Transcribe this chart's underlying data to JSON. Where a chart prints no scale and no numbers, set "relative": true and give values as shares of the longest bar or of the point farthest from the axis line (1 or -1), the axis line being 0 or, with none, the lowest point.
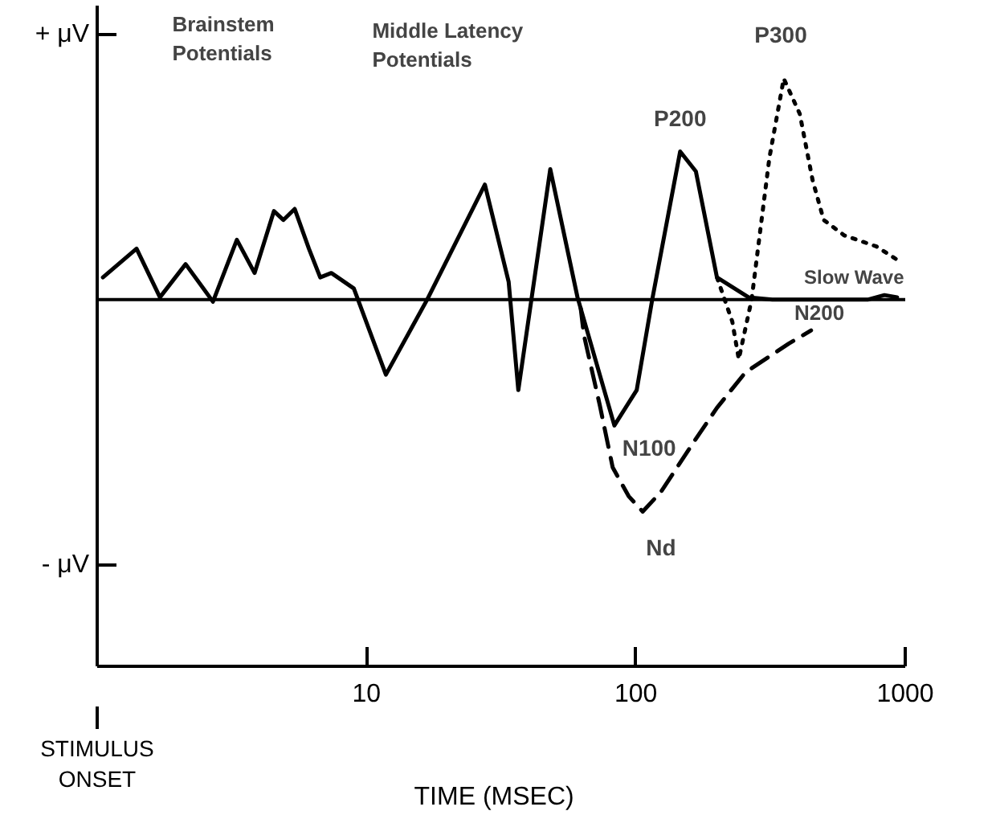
{
  "chart_data": {
    "type": "line",
    "log": "x",
    "grid": false,
    "relative": true,
    "xlabel": "TIME   (MSEC)",
    "xlim": [
      1,
      1000
    ],
    "xticks": [
      10,
      100,
      1000
    ],
    "ref_lines": [
      {
        "axis": "y",
        "value": 0,
        "color": "#000000",
        "line_style": "solid"
      }
    ],
    "series": [
      {
        "color": "#000000",
        "line_style": "solid",
        "x": [
          1.05,
          1.4,
          1.71,
          2.13,
          2.69,
          3.3,
          3.84,
          4.53,
          4.91,
          5.41,
          6.11,
          6.73,
          7.4,
          8.97,
          11.8,
          16.8,
          27.5,
          33.7,
          36.6,
          48.1,
          60.7,
          83.2,
          100.7,
          115,
          146,
          167,
          200,
          262,
          321,
          729,
          837,
          933
        ],
        "values": [
          0.1,
          0.23,
          0.01,
          0.16,
          -0.01,
          0.27,
          0.12,
          0.4,
          0.36,
          0.41,
          0.23,
          0.1,
          0.12,
          0.05,
          -0.34,
          0.0,
          0.52,
          0.08,
          -0.41,
          0.59,
          0.01,
          -0.57,
          -0.41,
          0.0,
          0.67,
          0.58,
          0.1,
          0.01,
          0.0,
          0.0,
          0.02,
          0.01
        ]
      },
      {
        "color": "#000000",
        "line_style": "dashed",
        "x": [
          62.4,
          64.1,
          73.5,
          82.0,
          94.0,
          106,
          124,
          163,
          200,
          255,
          369,
          447
        ],
        "values": [
          -0.04,
          -0.16,
          -0.48,
          -0.76,
          -0.89,
          -0.96,
          -0.87,
          -0.65,
          -0.49,
          -0.33,
          -0.2,
          -0.14
        ]
      },
      {
        "color": "#000000",
        "line_style": "dotted",
        "x": [
          200,
          228,
          241,
          269,
          288,
          313,
          354,
          406,
          453,
          498,
          594,
          782,
          933
        ],
        "values": [
          0.1,
          -0.1,
          -0.27,
          0.0,
          0.29,
          0.64,
          1.0,
          0.84,
          0.54,
          0.36,
          0.29,
          0.24,
          0.18
        ]
      }
    ],
    "annotations": [
      "Brainstem\nPotentials",
      "Middle Latency\nPotentials",
      "STIMULUS\nONSET",
      "P200",
      "P300",
      "N100",
      "Nd",
      "N200",
      "Slow Wave",
      "+ μV",
      "- μV"
    ]
  }
}
